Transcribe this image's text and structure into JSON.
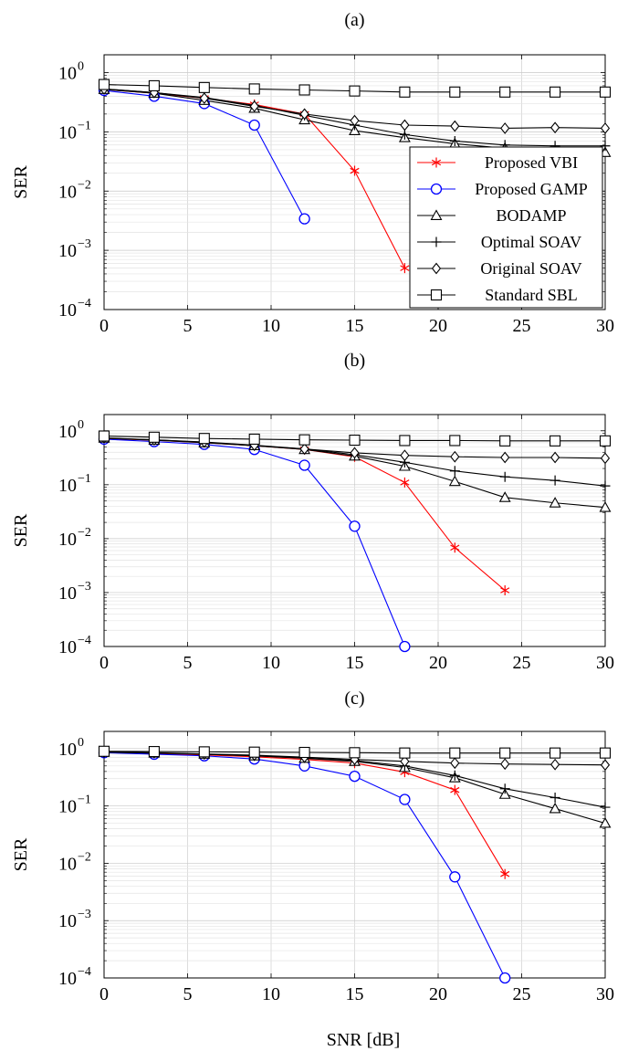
{
  "figure": {
    "xlabel": "SNR [dB]"
  },
  "chart_data": [
    {
      "type": "line",
      "title": "(a)",
      "xlabel": "",
      "ylabel": "SER",
      "yscale": "log",
      "xlim": [
        0,
        30
      ],
      "ylim": [
        0.0001,
        2
      ],
      "x_ticks": [
        "0",
        "5",
        "10",
        "15",
        "20",
        "25",
        "30"
      ],
      "y_ticks": [
        "10",
        "10",
        "10",
        "10",
        "10"
      ],
      "y_tick_exponents": [
        "−4",
        "−3",
        "−2",
        "−1",
        "0"
      ],
      "grid": true,
      "legend": "right",
      "series": [
        {
          "name": "Proposed VBI",
          "color": "#ff0000",
          "marker": "asterisk",
          "x": [
            0,
            3,
            6,
            9,
            12,
            15,
            18
          ],
          "values": [
            0.52,
            0.45,
            0.37,
            0.29,
            0.2,
            0.022,
            0.0005
          ]
        },
        {
          "name": "Proposed GAMP",
          "color": "#0000ff",
          "marker": "circle",
          "x": [
            0,
            3,
            6,
            9,
            12
          ],
          "values": [
            0.5,
            0.4,
            0.3,
            0.13,
            0.0034
          ]
        },
        {
          "name": "BODAMP",
          "color": "#000000",
          "marker": "triangle",
          "x": [
            0,
            3,
            6,
            9,
            12,
            15,
            18,
            21,
            24,
            27,
            30
          ],
          "values": [
            0.52,
            0.45,
            0.34,
            0.25,
            0.16,
            0.105,
            0.08,
            0.063,
            0.053,
            0.046,
            0.045
          ]
        },
        {
          "name": "Optimal SOAV",
          "color": "#000000",
          "marker": "plus",
          "x": [
            0,
            3,
            6,
            9,
            12,
            15,
            18,
            21,
            24,
            27,
            30
          ],
          "values": [
            0.53,
            0.46,
            0.38,
            0.28,
            0.19,
            0.13,
            0.09,
            0.07,
            0.06,
            0.058,
            0.058
          ]
        },
        {
          "name": "Original SOAV",
          "color": "#000000",
          "marker": "diamond",
          "x": [
            0,
            3,
            6,
            9,
            12,
            15,
            18,
            21,
            24,
            27,
            30
          ],
          "values": [
            0.53,
            0.46,
            0.37,
            0.27,
            0.2,
            0.155,
            0.13,
            0.125,
            0.115,
            0.118,
            0.115
          ]
        },
        {
          "name": "Standard SBL",
          "color": "#000000",
          "marker": "square",
          "x": [
            0,
            3,
            6,
            9,
            12,
            15,
            18,
            21,
            24,
            27,
            30
          ],
          "values": [
            0.63,
            0.6,
            0.56,
            0.53,
            0.51,
            0.49,
            0.47,
            0.47,
            0.47,
            0.47,
            0.47
          ]
        }
      ]
    },
    {
      "type": "line",
      "title": "(b)",
      "xlabel": "",
      "ylabel": "SER",
      "yscale": "log",
      "xlim": [
        0,
        30
      ],
      "ylim": [
        0.0001,
        2
      ],
      "x_ticks": [
        "0",
        "5",
        "10",
        "15",
        "20",
        "25",
        "30"
      ],
      "y_ticks": [
        "10",
        "10",
        "10",
        "10",
        "10"
      ],
      "y_tick_exponents": [
        "−4",
        "−3",
        "−2",
        "−1",
        "0"
      ],
      "grid": true,
      "legend": "none",
      "series": [
        {
          "name": "Proposed VBI",
          "color": "#ff0000",
          "marker": "asterisk",
          "x": [
            0,
            3,
            6,
            9,
            12,
            15,
            18,
            21,
            24
          ],
          "values": [
            0.72,
            0.67,
            0.6,
            0.53,
            0.45,
            0.33,
            0.11,
            0.0068,
            0.0011
          ]
        },
        {
          "name": "Proposed GAMP",
          "color": "#0000ff",
          "marker": "circle",
          "x": [
            0,
            3,
            6,
            9,
            12,
            15,
            18
          ],
          "values": [
            0.7,
            0.63,
            0.56,
            0.45,
            0.23,
            0.017,
            0.0001
          ]
        },
        {
          "name": "BODAMP",
          "color": "#000000",
          "marker": "triangle",
          "x": [
            0,
            3,
            6,
            9,
            12,
            15,
            18,
            21,
            24,
            27,
            30
          ],
          "values": [
            0.73,
            0.67,
            0.6,
            0.53,
            0.45,
            0.34,
            0.22,
            0.115,
            0.058,
            0.046,
            0.038
          ]
        },
        {
          "name": "Optimal SOAV",
          "color": "#000000",
          "marker": "plus",
          "x": [
            0,
            3,
            6,
            9,
            12,
            15,
            18,
            21,
            24,
            27,
            30
          ],
          "values": [
            0.73,
            0.68,
            0.61,
            0.53,
            0.46,
            0.36,
            0.26,
            0.18,
            0.14,
            0.12,
            0.095
          ]
        },
        {
          "name": "Original SOAV",
          "color": "#000000",
          "marker": "diamond",
          "x": [
            0,
            3,
            6,
            9,
            12,
            15,
            18,
            21,
            24,
            27,
            30
          ],
          "values": [
            0.74,
            0.68,
            0.62,
            0.54,
            0.46,
            0.39,
            0.35,
            0.33,
            0.32,
            0.32,
            0.31
          ]
        },
        {
          "name": "Standard SBL",
          "color": "#000000",
          "marker": "square",
          "x": [
            0,
            3,
            6,
            9,
            12,
            15,
            18,
            21,
            24,
            27,
            30
          ],
          "values": [
            0.8,
            0.76,
            0.72,
            0.7,
            0.68,
            0.67,
            0.66,
            0.66,
            0.65,
            0.65,
            0.65
          ]
        }
      ]
    },
    {
      "type": "line",
      "title": "(c)",
      "xlabel": "SNR [dB]",
      "ylabel": "SER",
      "yscale": "log",
      "xlim": [
        0,
        30
      ],
      "ylim": [
        0.0001,
        2
      ],
      "x_ticks": [
        "0",
        "5",
        "10",
        "15",
        "20",
        "25",
        "30"
      ],
      "y_ticks": [
        "10",
        "10",
        "10",
        "10",
        "10"
      ],
      "y_tick_exponents": [
        "−4",
        "−3",
        "−2",
        "−1",
        "0"
      ],
      "grid": true,
      "legend": "none",
      "series": [
        {
          "name": "Proposed VBI",
          "color": "#ff0000",
          "marker": "asterisk",
          "x": [
            0,
            3,
            6,
            9,
            12,
            15,
            18,
            21,
            24
          ],
          "values": [
            0.86,
            0.82,
            0.78,
            0.72,
            0.65,
            0.56,
            0.39,
            0.19,
            0.0065
          ]
        },
        {
          "name": "Proposed GAMP",
          "color": "#0000ff",
          "marker": "circle",
          "x": [
            0,
            3,
            6,
            9,
            12,
            15,
            18,
            21,
            24
          ],
          "values": [
            0.85,
            0.8,
            0.75,
            0.66,
            0.5,
            0.33,
            0.13,
            0.0058,
            0.0001
          ]
        },
        {
          "name": "BODAMP",
          "color": "#000000",
          "marker": "triangle",
          "x": [
            0,
            3,
            6,
            9,
            12,
            15,
            18,
            21,
            24,
            27,
            30
          ],
          "values": [
            0.87,
            0.84,
            0.8,
            0.75,
            0.68,
            0.6,
            0.47,
            0.31,
            0.16,
            0.09,
            0.05
          ]
        },
        {
          "name": "Optimal SOAV",
          "color": "#000000",
          "marker": "plus",
          "x": [
            0,
            3,
            6,
            9,
            12,
            15,
            18,
            21,
            24,
            27,
            30
          ],
          "values": [
            0.87,
            0.84,
            0.8,
            0.75,
            0.69,
            0.62,
            0.5,
            0.34,
            0.2,
            0.14,
            0.095
          ]
        },
        {
          "name": "Original SOAV",
          "color": "#000000",
          "marker": "diamond",
          "x": [
            0,
            3,
            6,
            9,
            12,
            15,
            18,
            21,
            24,
            27,
            30
          ],
          "values": [
            0.87,
            0.85,
            0.81,
            0.77,
            0.71,
            0.65,
            0.6,
            0.56,
            0.54,
            0.53,
            0.52
          ]
        },
        {
          "name": "Standard SBL",
          "color": "#000000",
          "marker": "square",
          "x": [
            0,
            3,
            6,
            9,
            12,
            15,
            18,
            21,
            24,
            27,
            30
          ],
          "values": [
            0.9,
            0.89,
            0.88,
            0.87,
            0.86,
            0.85,
            0.84,
            0.84,
            0.84,
            0.84,
            0.84
          ]
        }
      ]
    }
  ]
}
